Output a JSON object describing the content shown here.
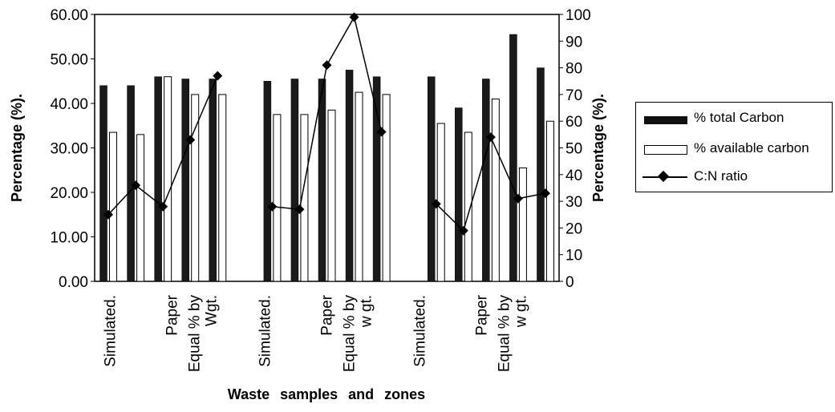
{
  "chart_data": {
    "type": "bar",
    "xlabel": "Waste samples and zones",
    "ylabel_left": "Percentage (%).",
    "ylabel_right": "Percentage (%).",
    "ylim_left": [
      0,
      60
    ],
    "ylim_right": [
      0,
      100
    ],
    "yticks_left": [
      "0.00",
      "10.00",
      "20.00",
      "30.00",
      "40.00",
      "50.00",
      "60.00"
    ],
    "yticks_right": [
      "0",
      "10",
      "20",
      "30",
      "40",
      "50",
      "60",
      "70",
      "80",
      "90",
      "100"
    ],
    "category_labels": [
      {
        "lines": [
          "Simulated."
        ]
      },
      {
        "lines": [
          ""
        ]
      },
      {
        "lines": [
          "Paper"
        ]
      },
      {
        "lines": [
          "Equal % by",
          "Wgt."
        ]
      },
      {
        "lines": [
          ""
        ]
      },
      {
        "lines": [
          "Simulated."
        ]
      },
      {
        "lines": [
          ""
        ]
      },
      {
        "lines": [
          "Paper"
        ]
      },
      {
        "lines": [
          "Equal % by",
          "w gt."
        ]
      },
      {
        "lines": [
          ""
        ]
      },
      {
        "lines": [
          "Simulated."
        ]
      },
      {
        "lines": [
          ""
        ]
      },
      {
        "lines": [
          "Paper"
        ]
      },
      {
        "lines": [
          "Equal % by",
          "w gt."
        ]
      },
      {
        "lines": [
          ""
        ]
      }
    ],
    "series": [
      {
        "name": "% total Carbon",
        "axis": "left",
        "kind": "bar",
        "values": [
          44,
          44,
          46,
          45.5,
          45.5,
          null,
          45,
          45.5,
          45.5,
          47.5,
          46,
          null,
          46,
          39,
          45.5,
          55.5,
          48
        ]
      },
      {
        "name": "% available carbon",
        "axis": "left",
        "kind": "bar",
        "values": [
          33.5,
          33,
          46,
          42,
          42,
          null,
          37.5,
          37.5,
          38.5,
          42.5,
          42,
          null,
          35.5,
          33.5,
          41,
          25.5,
          36
        ]
      },
      {
        "name": "C:N ratio",
        "axis": "right",
        "kind": "line",
        "values": [
          25,
          36,
          28,
          53,
          77,
          null,
          28,
          27,
          81,
          99,
          56,
          null,
          29,
          19,
          54,
          31,
          33
        ]
      }
    ],
    "legend_position": "right",
    "grid": false
  }
}
